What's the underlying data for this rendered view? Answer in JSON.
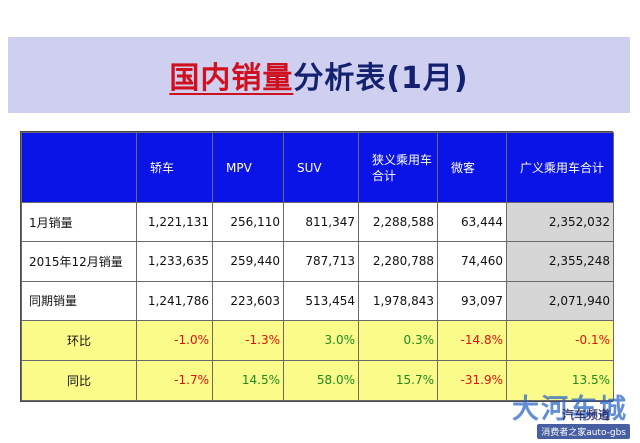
{
  "title": {
    "part1": "国内销量",
    "part2": "分析表(1月)"
  },
  "table": {
    "headers": [
      "",
      "轿车",
      "MPV",
      "SUV",
      "狭义乘用车合计",
      "微客",
      "广义乘用车合计"
    ],
    "rows": [
      {
        "label": "1月销量",
        "values": [
          "1,221,131",
          "256,110",
          "811,347",
          "2,288,588",
          "63,444",
          "2,352,032"
        ]
      },
      {
        "label": "2015年12月销量",
        "values": [
          "1,233,635",
          "259,440",
          "787,713",
          "2,280,788",
          "74,460",
          "2,355,248"
        ]
      },
      {
        "label": "同期销量",
        "values": [
          "1,241,786",
          "223,603",
          "513,454",
          "1,978,843",
          "93,097",
          "2,071,940"
        ]
      }
    ],
    "ratios": [
      {
        "label": "环比",
        "values": [
          "-1.0%",
          "-1.3%",
          "3.0%",
          "0.3%",
          "-14.8%",
          "-0.1%"
        ]
      },
      {
        "label": "同比",
        "values": [
          "-1.7%",
          "14.5%",
          "58.0%",
          "15.7%",
          "-31.9%",
          "13.5%"
        ]
      }
    ]
  },
  "colors": {
    "negative": "#e01010",
    "positive": "#1e8a1e",
    "header_bg": "#0a14e6",
    "ratio_bg": "#fbfb8a",
    "title_band": "#cfcff0"
  },
  "watermark": {
    "main": "大河车城",
    "sub": "汽车频道",
    "url": "消费者之家auto-gbs"
  }
}
